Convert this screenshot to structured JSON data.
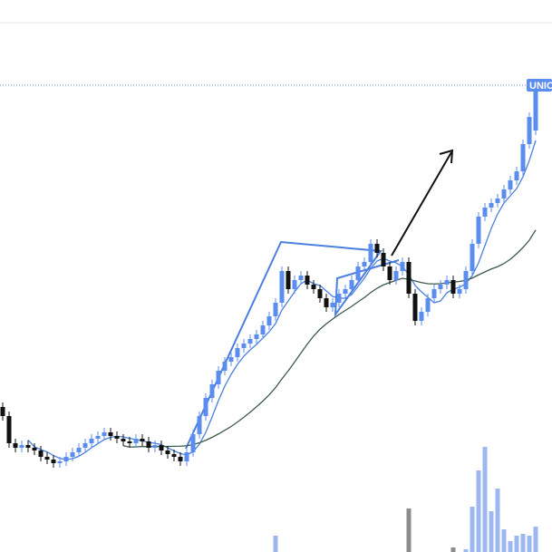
{
  "chart_data": {
    "type": "candlestick",
    "open": [
      160,
      150,
      120,
      115,
      118,
      115,
      112,
      105,
      102,
      98,
      100,
      105,
      110,
      115,
      120,
      125,
      128,
      132,
      128,
      125,
      122,
      120,
      125,
      122,
      115,
      118,
      112,
      108,
      105,
      100,
      110,
      130,
      150,
      170,
      185,
      200,
      210,
      215,
      225,
      230,
      235,
      240,
      250,
      260,
      275,
      310,
      290,
      300,
      305,
      295,
      290,
      280,
      270,
      275,
      285,
      290,
      300,
      315,
      320,
      340,
      330,
      315,
      300,
      310,
      320,
      285,
      255,
      265,
      280,
      290,
      295,
      300,
      285,
      290,
      310,
      340,
      370,
      380,
      385,
      390,
      400,
      410,
      420,
      450,
      465
    ],
    "high": [
      165,
      155,
      125,
      123,
      123,
      120,
      117,
      110,
      107,
      105,
      110,
      115,
      120,
      125,
      130,
      133,
      137,
      137,
      133,
      130,
      127,
      130,
      130,
      127,
      123,
      123,
      117,
      113,
      110,
      115,
      135,
      155,
      175,
      190,
      205,
      215,
      220,
      230,
      235,
      240,
      245,
      255,
      265,
      280,
      315,
      315,
      305,
      310,
      310,
      300,
      295,
      285,
      280,
      290,
      295,
      305,
      320,
      325,
      345,
      345,
      335,
      320,
      315,
      325,
      325,
      290,
      270,
      285,
      295,
      300,
      305,
      305,
      295,
      315,
      345,
      375,
      385,
      390,
      395,
      405,
      415,
      425,
      455,
      485,
      515
    ],
    "low": [
      145,
      115,
      110,
      110,
      110,
      107,
      100,
      97,
      93,
      93,
      95,
      100,
      105,
      110,
      115,
      120,
      123,
      123,
      120,
      117,
      115,
      115,
      117,
      110,
      110,
      107,
      103,
      100,
      95,
      95,
      105,
      125,
      145,
      165,
      180,
      195,
      205,
      210,
      220,
      225,
      230,
      235,
      245,
      255,
      270,
      285,
      285,
      295,
      290,
      285,
      275,
      265,
      265,
      270,
      280,
      285,
      295,
      310,
      315,
      325,
      310,
      295,
      295,
      305,
      280,
      250,
      250,
      260,
      275,
      285,
      290,
      280,
      280,
      285,
      305,
      335,
      365,
      375,
      380,
      385,
      395,
      405,
      415,
      445,
      460
    ],
    "close": [
      150,
      120,
      115,
      118,
      115,
      112,
      105,
      102,
      98,
      100,
      105,
      110,
      115,
      120,
      125,
      128,
      132,
      128,
      125,
      122,
      120,
      125,
      122,
      115,
      118,
      112,
      108,
      105,
      100,
      110,
      130,
      150,
      170,
      185,
      200,
      210,
      215,
      225,
      230,
      235,
      240,
      250,
      260,
      275,
      310,
      290,
      300,
      305,
      295,
      290,
      280,
      270,
      275,
      285,
      290,
      300,
      315,
      320,
      340,
      330,
      315,
      300,
      310,
      320,
      285,
      255,
      265,
      280,
      290,
      295,
      300,
      285,
      290,
      310,
      340,
      370,
      380,
      385,
      390,
      400,
      410,
      420,
      450,
      480,
      510
    ],
    "volume": [
      0,
      0,
      0,
      0,
      0,
      0,
      0,
      0,
      0,
      0,
      0,
      0,
      0,
      0,
      0,
      0,
      0,
      0,
      0,
      0,
      0,
      0,
      0,
      0,
      0,
      0,
      0,
      0,
      0,
      0,
      0,
      0,
      0,
      0,
      0,
      0,
      0,
      0,
      0,
      0,
      0,
      0,
      0,
      18,
      0,
      0,
      0,
      0,
      0,
      0,
      0,
      0,
      0,
      0,
      0,
      0,
      0,
      0,
      0,
      0,
      0,
      0,
      0,
      0,
      48,
      0,
      0,
      0,
      0,
      0,
      0,
      5,
      0,
      3,
      50,
      90,
      116,
      45,
      70,
      25,
      12,
      18,
      20,
      18,
      28
    ],
    "ylim": [
      0,
      609
    ],
    "volume_ylim": [
      0,
      609
    ],
    "up_color": "#5b8def",
    "down_color": "#111111",
    "volume_up_color": "#9db8f0",
    "volume_down_color": "#8c8c8c",
    "moving_averages": [
      {
        "period": 5,
        "color": "#4a7fe0"
      },
      {
        "period": 20,
        "color": "#3c5a4a"
      }
    ],
    "price_label": "UNIC"
  }
}
